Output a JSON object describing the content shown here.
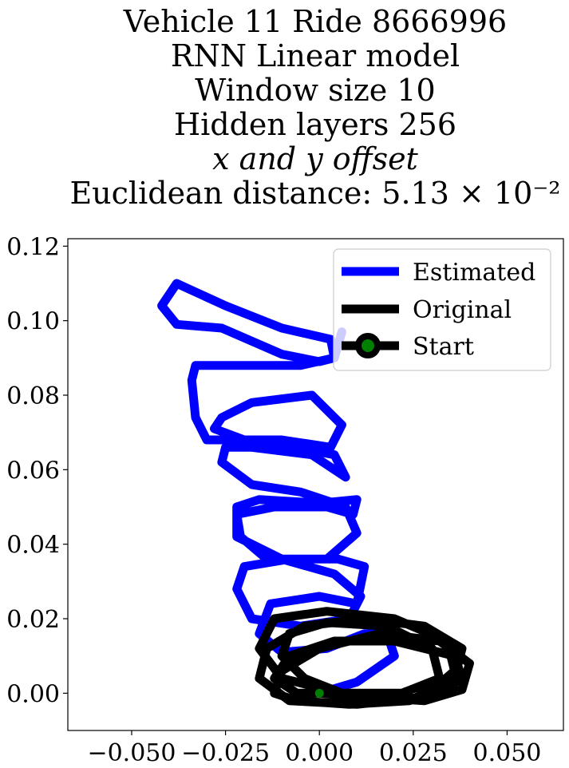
{
  "chart_data": {
    "type": "line",
    "title_lines": [
      "Vehicle 11 Ride 8666996",
      "RNN Linear model",
      "Window size 10",
      "Hidden layers 256",
      "x and y offset",
      "Euclidean distance: 5.13 × 10⁻²"
    ],
    "xlabel": "",
    "ylabel": "",
    "xlim": [
      -0.067,
      0.065
    ],
    "ylim": [
      -0.01,
      0.122
    ],
    "x_ticks": [
      -0.05,
      -0.025,
      0.0,
      0.025,
      0.05
    ],
    "x_tick_labels": [
      "−0.050",
      "−0.025",
      "0.000",
      "0.025",
      "0.050"
    ],
    "y_ticks": [
      0.0,
      0.02,
      0.04,
      0.06,
      0.08,
      0.1,
      0.12
    ],
    "y_tick_labels": [
      "0.00",
      "0.02",
      "0.04",
      "0.06",
      "0.08",
      "0.10",
      "0.12"
    ],
    "grid": false,
    "legend_position": "top-right",
    "series": [
      {
        "name": "Estimated",
        "color": "#0000ff",
        "x": [
          0.0,
          0.01,
          0.02,
          0.018,
          0.012,
          0.002,
          -0.01,
          -0.016,
          -0.013,
          0.0,
          0.01,
          0.012,
          0.005,
          -0.008,
          -0.02,
          -0.022,
          -0.018,
          -0.005,
          0.008,
          0.011,
          0.004,
          -0.01,
          -0.022,
          -0.022,
          -0.016,
          0.0,
          0.01,
          0.009,
          0.002,
          -0.012,
          -0.022,
          -0.021,
          -0.014,
          0.002,
          0.01,
          0.007,
          -0.005,
          -0.018,
          -0.026,
          -0.025,
          -0.018,
          -0.002,
          0.007,
          0.004,
          -0.006,
          -0.02,
          -0.028,
          -0.026,
          -0.018,
          -0.002,
          0.006,
          0.003,
          -0.01,
          -0.03,
          -0.033,
          -0.034,
          -0.033,
          -0.02,
          -0.005,
          0.004,
          0.003,
          -0.01,
          -0.025,
          -0.038,
          -0.042,
          -0.038,
          -0.026,
          -0.01,
          0.0,
          0.004,
          0.006
        ],
        "y": [
          0.0,
          0.003,
          0.01,
          0.016,
          0.016,
          0.012,
          0.011,
          0.016,
          0.024,
          0.026,
          0.024,
          0.034,
          0.036,
          0.036,
          0.034,
          0.028,
          0.02,
          0.018,
          0.02,
          0.026,
          0.032,
          0.036,
          0.042,
          0.05,
          0.052,
          0.051,
          0.052,
          0.048,
          0.05,
          0.05,
          0.048,
          0.042,
          0.036,
          0.036,
          0.043,
          0.05,
          0.054,
          0.056,
          0.062,
          0.066,
          0.066,
          0.064,
          0.058,
          0.064,
          0.066,
          0.068,
          0.071,
          0.074,
          0.078,
          0.08,
          0.072,
          0.066,
          0.068,
          0.068,
          0.074,
          0.084,
          0.088,
          0.088,
          0.088,
          0.09,
          0.095,
          0.098,
          0.104,
          0.11,
          0.104,
          0.099,
          0.098,
          0.091,
          0.089,
          0.09,
          0.097
        ]
      },
      {
        "name": "Original",
        "color": "#000000",
        "x": [
          0.0,
          0.012,
          0.028,
          0.038,
          0.04,
          0.032,
          0.016,
          0.0,
          -0.01,
          -0.012,
          -0.006,
          0.008,
          0.024,
          0.036,
          0.038,
          0.028,
          0.012,
          -0.004,
          -0.014,
          -0.016,
          -0.008,
          0.01,
          0.028,
          0.036,
          0.034,
          0.02,
          0.002,
          -0.012,
          -0.016,
          -0.01,
          0.006,
          0.022,
          0.032,
          0.03,
          0.018,
          0.002,
          -0.008,
          -0.01,
          -0.004,
          0.006,
          0.016,
          0.03,
          0.038,
          0.036,
          0.02,
          0.004,
          -0.008,
          -0.012,
          -0.006,
          0.0
        ],
        "y": [
          0.0,
          -0.001,
          -0.002,
          0.001,
          0.008,
          0.014,
          0.016,
          0.012,
          0.006,
          0.0,
          -0.002,
          -0.003,
          -0.002,
          0.004,
          0.012,
          0.018,
          0.02,
          0.018,
          0.012,
          0.004,
          -0.002,
          -0.003,
          -0.001,
          0.006,
          0.014,
          0.02,
          0.022,
          0.02,
          0.012,
          0.004,
          0.0,
          0.0,
          0.004,
          0.012,
          0.018,
          0.019,
          0.016,
          0.01,
          0.004,
          0.0,
          -0.002,
          -0.001,
          0.004,
          0.01,
          0.014,
          0.014,
          0.01,
          0.004,
          0.0,
          0.0
        ]
      }
    ],
    "start_point": {
      "name": "Start",
      "x": 0.0,
      "y": 0.0,
      "color": "#008000"
    }
  }
}
